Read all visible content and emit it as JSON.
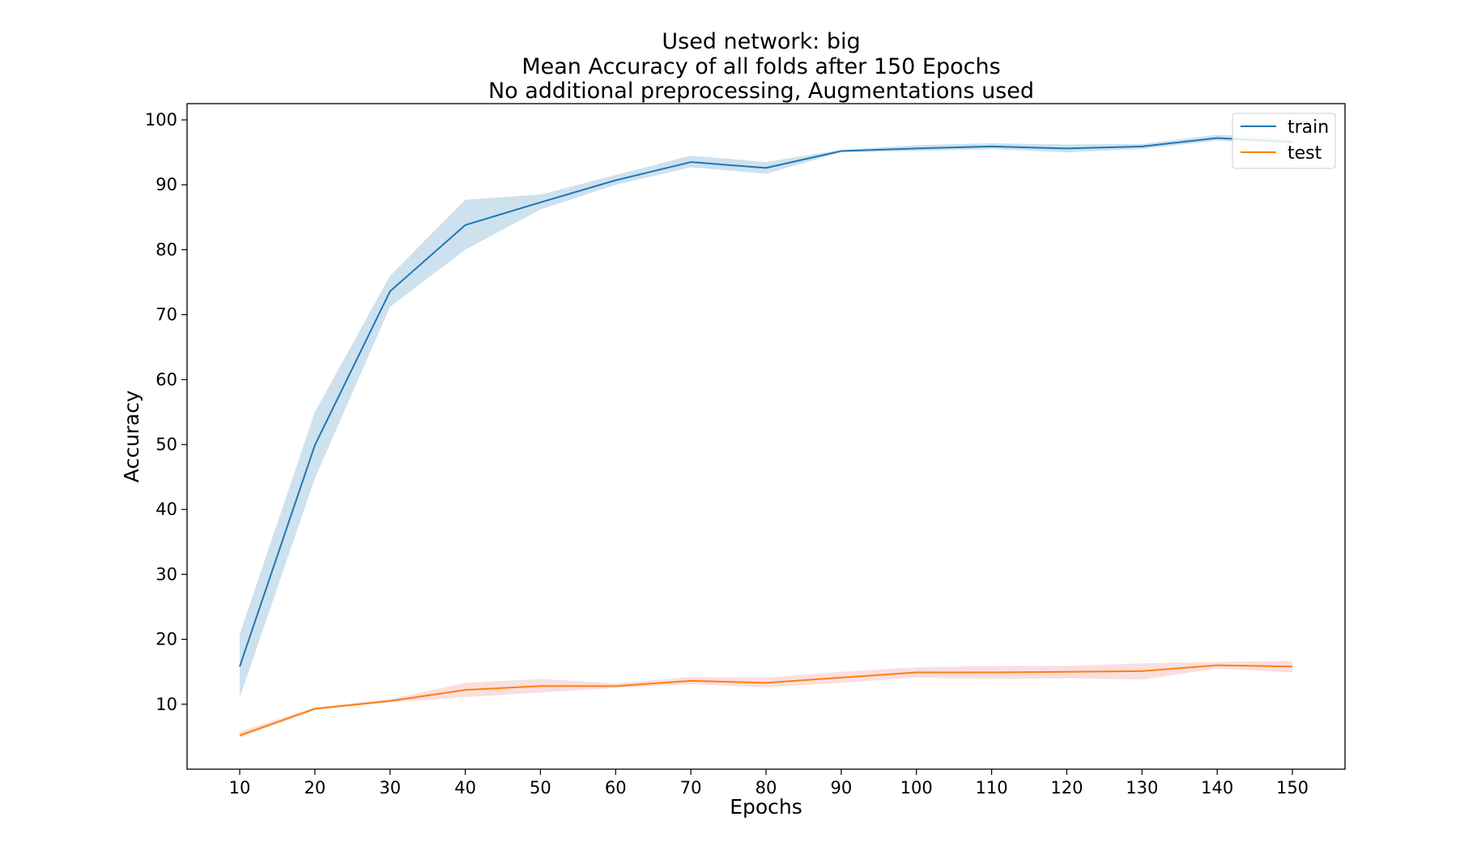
{
  "chart_data": {
    "type": "line",
    "title_lines": [
      "Used network: big",
      "Mean Accuracy of all folds after 150 Epochs",
      "No additional preprocessing, Augmentations used"
    ],
    "xlabel": "Epochs",
    "ylabel": "Accuracy",
    "xlim": [
      3,
      157
    ],
    "ylim": [
      0,
      102.5
    ],
    "x": [
      10,
      20,
      30,
      40,
      50,
      60,
      70,
      80,
      90,
      100,
      110,
      120,
      130,
      140,
      150
    ],
    "xticks": [
      10,
      20,
      30,
      40,
      50,
      60,
      70,
      80,
      90,
      100,
      110,
      120,
      130,
      140,
      150
    ],
    "yticks": [
      10,
      20,
      30,
      40,
      50,
      60,
      70,
      80,
      90,
      100
    ],
    "grid": false,
    "legend_position": "top-right",
    "series": [
      {
        "name": "train",
        "color": "#1f77b4",
        "values": [
          15.8,
          49.9,
          73.6,
          83.8,
          87.3,
          90.7,
          93.5,
          92.6,
          95.2,
          95.6,
          95.9,
          95.6,
          95.9,
          97.2,
          96.6
        ],
        "lower": [
          11.0,
          44.8,
          71.2,
          80.0,
          86.2,
          90.0,
          92.7,
          91.7,
          95.0,
          95.2,
          95.5,
          95.0,
          95.5,
          96.8,
          96.2
        ],
        "upper": [
          20.8,
          55.0,
          76.0,
          87.7,
          88.5,
          91.5,
          94.5,
          93.5,
          95.4,
          96.1,
          96.4,
          96.2,
          96.3,
          97.7,
          97.1
        ]
      },
      {
        "name": "test",
        "color": "#ff7f0e",
        "band_color": "#d62728",
        "values": [
          5.2,
          9.3,
          10.5,
          12.2,
          12.8,
          12.8,
          13.6,
          13.3,
          14.1,
          14.9,
          14.9,
          15.0,
          15.1,
          16.0,
          15.8
        ],
        "lower": [
          4.8,
          9.1,
          10.3,
          11.1,
          11.8,
          12.5,
          13.1,
          12.6,
          13.3,
          14.1,
          13.9,
          14.0,
          13.8,
          15.5,
          14.9
        ],
        "upper": [
          5.8,
          9.5,
          10.8,
          13.3,
          13.9,
          13.2,
          14.2,
          14.1,
          15.0,
          15.7,
          15.9,
          15.9,
          16.3,
          16.5,
          16.7
        ]
      }
    ]
  }
}
